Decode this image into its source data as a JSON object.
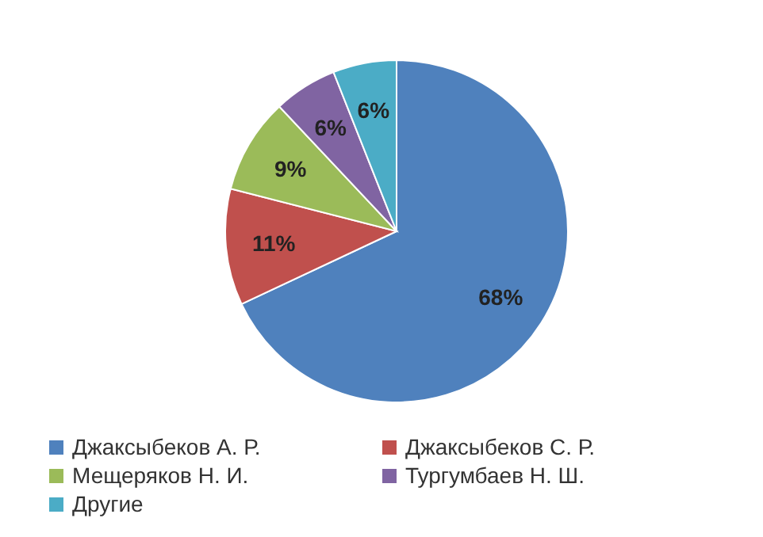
{
  "chart_data": {
    "type": "pie",
    "categories": [
      "Джаксыбеков А. Р.",
      "Джаксыбеков С. Р.",
      "Мещеряков Н. И.",
      "Тургумбаев Н. Ш.",
      "Другие"
    ],
    "values": [
      68,
      11,
      9,
      6,
      6
    ],
    "colors": [
      "#4f81bd",
      "#c0504d",
      "#9bbb59",
      "#8064a2",
      "#4bacc6"
    ],
    "value_labels": [
      "68%",
      "11%",
      "9%",
      "6%",
      "6%"
    ],
    "legend": "bottom"
  }
}
